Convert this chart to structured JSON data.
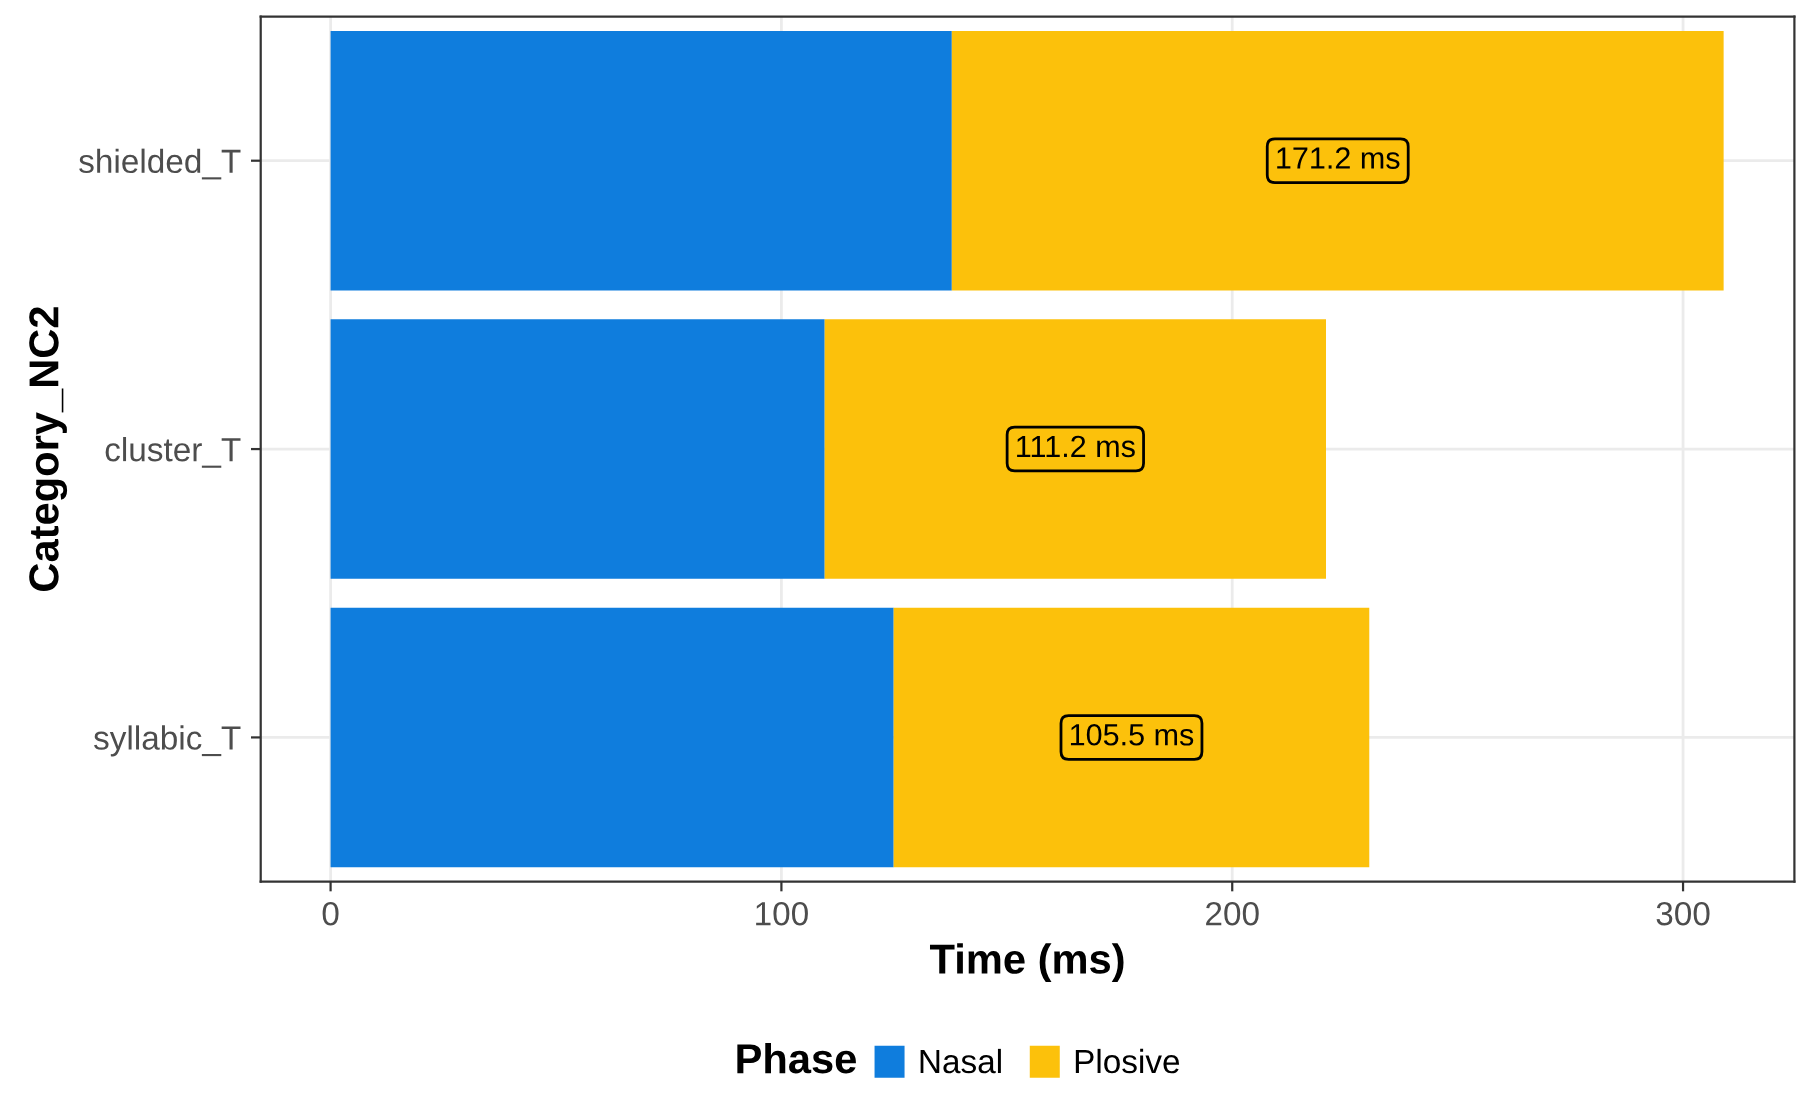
{
  "chart_data": {
    "type": "bar",
    "orientation": "horizontal",
    "stacked": true,
    "categories": [
      "shielded_T",
      "cluster_T",
      "syllabic_T"
    ],
    "series": [
      {
        "name": "Nasal",
        "color": "#0f7ddd",
        "values": [
          137.8,
          109.6,
          124.9
        ],
        "value_labels": [
          null,
          null,
          null
        ]
      },
      {
        "name": "Plosive",
        "color": "#fcc10b",
        "values": [
          171.2,
          111.2,
          105.5
        ],
        "value_labels": [
          "171.2 ms",
          "111.2 ms",
          "105.5 ms"
        ]
      }
    ],
    "xlabel": "Time (ms)",
    "ylabel": "Category_NC2",
    "legend_title": "Phase",
    "legend": "bottom",
    "xlim": [
      -15.5,
      324.7
    ],
    "xticks": [
      0,
      100,
      200,
      300
    ],
    "grid": true
  }
}
